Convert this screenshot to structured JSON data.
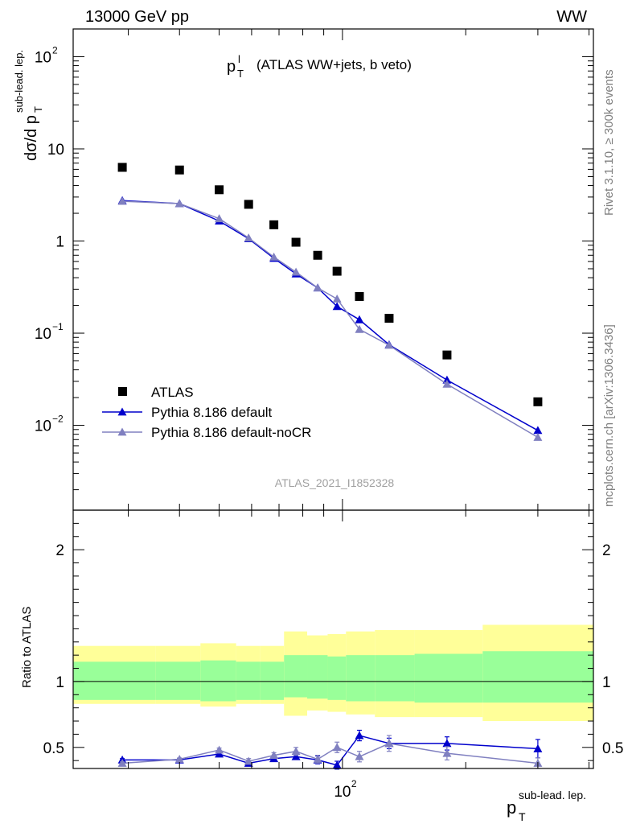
{
  "header": {
    "energy_label": "13000 GeV pp",
    "process_label": "WW"
  },
  "side_labels": {
    "rivet": "Rivet 3.1.10, ≥ 300k events",
    "mcplots": "mcplots.cern.ch [arXiv:1306.3436]"
  },
  "analysis_label": "ATLAS_2021_I1852328",
  "colors": {
    "data": "#000000",
    "default": "#0000cc",
    "nocr": "#8080c0",
    "band_inner": "#99ff99",
    "band_outer": "#ffff99"
  },
  "chart_data": [
    {
      "type": "scatter",
      "panel": "main",
      "title": "p_T^l (ATLAS WW+jets, b veto)",
      "xlabel": "p_T^{sub-lead. lep.}",
      "ylabel": "dσ/d p_T^{sub-lead. lep.}",
      "log_x": true,
      "log_y": true,
      "xlim": [
        22,
        410
      ],
      "ylim": [
        0.0012,
        200
      ],
      "y_ticks": [
        0.01,
        0.1,
        1,
        10,
        100
      ],
      "y_tick_labels": [
        "10^-2",
        "10^-1",
        "1",
        "10",
        "10^2"
      ],
      "x_tick_labels": [
        "10^2"
      ],
      "legend_position": "bottom-left",
      "series": [
        {
          "name": "ATLAS",
          "style": "markers-square",
          "x": [
            29,
            40,
            50,
            59,
            68,
            77,
            87,
            97,
            110,
            130,
            180,
            300
          ],
          "y": [
            6.3,
            5.9,
            3.6,
            2.5,
            1.5,
            0.97,
            0.7,
            0.47,
            0.25,
            0.145,
            0.058,
            0.018
          ]
        },
        {
          "name": "Pythia 8.186 default",
          "style": "line-triangle",
          "x": [
            29,
            40,
            50,
            59,
            68,
            77,
            87,
            97,
            110,
            130,
            180,
            300
          ],
          "y": [
            2.75,
            2.55,
            1.65,
            1.06,
            0.65,
            0.44,
            0.31,
            0.195,
            0.14,
            0.075,
            0.031,
            0.0088
          ]
        },
        {
          "name": "Pythia 8.186 default-noCR",
          "style": "line-triangle",
          "x": [
            29,
            40,
            50,
            59,
            68,
            77,
            87,
            97,
            110,
            130,
            180,
            300
          ],
          "y": [
            2.7,
            2.55,
            1.75,
            1.08,
            0.67,
            0.46,
            0.31,
            0.235,
            0.11,
            0.074,
            0.028,
            0.0074
          ]
        }
      ]
    },
    {
      "type": "line",
      "panel": "ratio",
      "ylabel": "Ratio to ATLAS",
      "log_x": true,
      "xlim": [
        22,
        410
      ],
      "ylim": [
        0.34,
        2.3
      ],
      "y_ticks": [
        0.5,
        1,
        2
      ],
      "y_tick_labels": [
        "0.5",
        "1",
        "2"
      ],
      "x_bin_edges": [
        22,
        35,
        45,
        55,
        63,
        72,
        82,
        92,
        102,
        120,
        150,
        220,
        410
      ],
      "band_inner": {
        "lo": [
          0.86,
          0.86,
          0.85,
          0.86,
          0.86,
          0.88,
          0.87,
          0.86,
          0.85,
          0.85,
          0.84,
          0.84
        ],
        "hi": [
          1.15,
          1.15,
          1.16,
          1.15,
          1.15,
          1.2,
          1.2,
          1.19,
          1.2,
          1.2,
          1.21,
          1.23
        ]
      },
      "band_outer": {
        "lo": [
          0.83,
          0.83,
          0.81,
          0.83,
          0.83,
          0.74,
          0.78,
          0.77,
          0.75,
          0.73,
          0.73,
          0.7
        ],
        "hi": [
          1.27,
          1.27,
          1.29,
          1.27,
          1.27,
          1.38,
          1.35,
          1.36,
          1.38,
          1.39,
          1.39,
          1.43
        ]
      },
      "series": [
        {
          "name": "Pythia 8.186 default",
          "x": [
            29,
            40,
            50,
            59,
            68,
            77,
            87,
            97,
            110,
            130,
            180,
            300
          ],
          "y": [
            0.405,
            0.405,
            0.45,
            0.38,
            0.415,
            0.43,
            0.405,
            0.365,
            0.59,
            0.53,
            0.53,
            0.49
          ],
          "err": [
            0.01,
            0.01,
            0.015,
            0.02,
            0.02,
            0.02,
            0.03,
            0.03,
            0.04,
            0.04,
            0.05,
            0.07
          ]
        },
        {
          "name": "Pythia 8.186 default-noCR",
          "x": [
            29,
            40,
            50,
            59,
            68,
            77,
            87,
            97,
            110,
            130,
            180,
            300
          ],
          "y": [
            0.38,
            0.41,
            0.48,
            0.395,
            0.44,
            0.47,
            0.41,
            0.5,
            0.43,
            0.53,
            0.455,
            0.38
          ],
          "err": [
            0.01,
            0.01,
            0.015,
            0.02,
            0.02,
            0.03,
            0.03,
            0.04,
            0.04,
            0.06,
            0.05,
            0.04
          ]
        }
      ]
    }
  ]
}
